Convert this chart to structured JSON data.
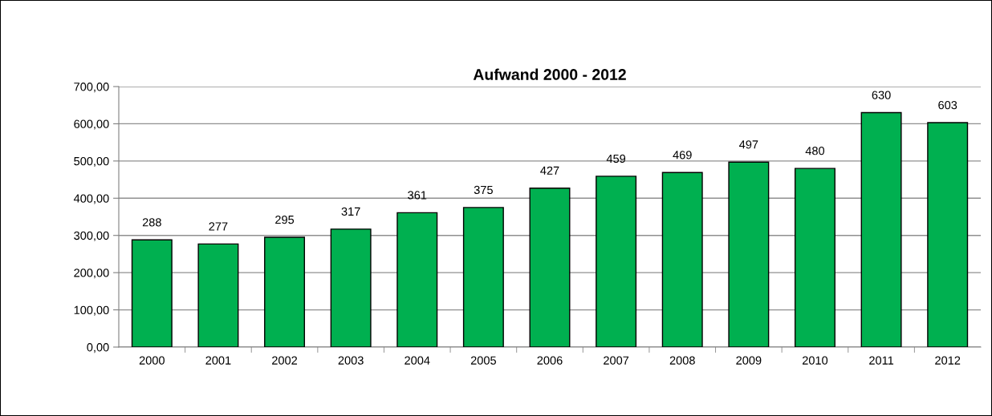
{
  "chart_data": {
    "type": "bar",
    "title": "Aufwand 2000 - 2012",
    "categories": [
      "2000",
      "2001",
      "2002",
      "2003",
      "2004",
      "2005",
      "2006",
      "2007",
      "2008",
      "2009",
      "2010",
      "2011",
      "2012"
    ],
    "values": [
      288,
      277,
      295,
      317,
      361,
      375,
      427,
      459,
      469,
      497,
      480,
      630,
      603
    ],
    "color": "#00b050",
    "ylim": [
      0,
      700
    ],
    "yticks": [
      {
        "value": 0,
        "label": "0,00"
      },
      {
        "value": 100,
        "label": "100,00"
      },
      {
        "value": 200,
        "label": "200,00"
      },
      {
        "value": 300,
        "label": "300,00"
      },
      {
        "value": 400,
        "label": "400,00"
      },
      {
        "value": 500,
        "label": "500,00"
      },
      {
        "value": 600,
        "label": "600,00"
      },
      {
        "value": 700,
        "label": "700,00"
      }
    ],
    "grid": "y",
    "data_labels": true
  }
}
